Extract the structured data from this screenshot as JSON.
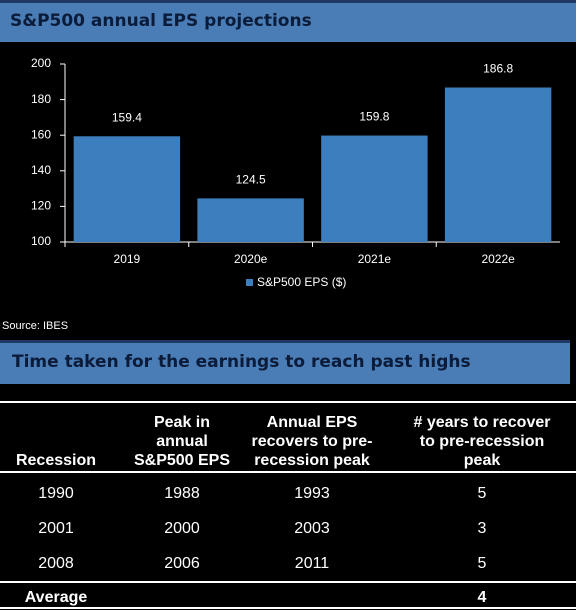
{
  "chart_data": {
    "type": "bar",
    "title": "S&P500 annual EPS projections",
    "categories": [
      "2019",
      "2020e",
      "2021e",
      "2022e"
    ],
    "series": [
      {
        "name": "S&P500 EPS ($)",
        "color": "#3d7ebf",
        "values": [
          159.4,
          124.5,
          159.8,
          186.8
        ]
      }
    ],
    "ylim": [
      100,
      200
    ],
    "yticks": [
      100,
      120,
      140,
      160,
      180,
      200
    ],
    "grid": false,
    "legend": "bottom"
  },
  "source": "Source: IBES",
  "table": {
    "title": "Time taken for the earnings to reach past highs",
    "header": [
      [
        "Recession"
      ],
      [
        "Peak in",
        "annual",
        "S&P500 EPS"
      ],
      [
        "Annual EPS",
        "recovers to pre-",
        "recession peak"
      ],
      [
        "# years to recover",
        "to pre-recession",
        "peak"
      ]
    ],
    "rows": [
      [
        "1990",
        "1988",
        "1993",
        "5"
      ],
      [
        "2001",
        "2000",
        "2003",
        "3"
      ],
      [
        "2008",
        "2006",
        "2011",
        "5"
      ]
    ],
    "footer": {
      "label": "Average",
      "value": "4"
    }
  }
}
